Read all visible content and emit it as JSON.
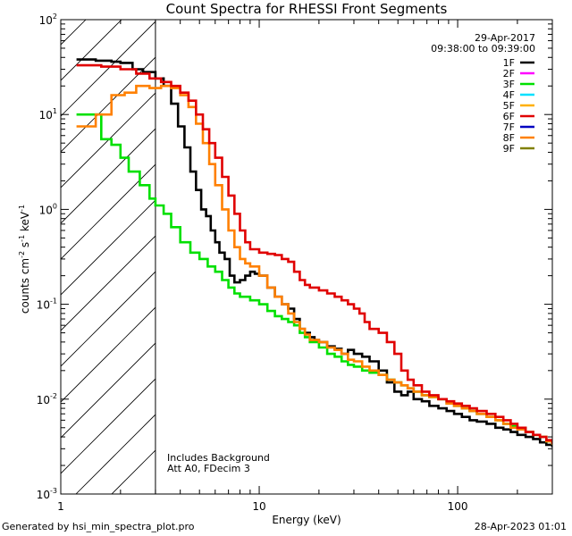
{
  "chart_data": {
    "type": "line",
    "title": "Count Spectra for RHESSI Front Segments",
    "xlabel": "Energy (keV)",
    "ylabel": "counts cm-2 s-1 keV-1",
    "xscale": "log",
    "yscale": "log",
    "xlim": [
      1,
      300
    ],
    "ylim": [
      0.001,
      100
    ],
    "x_tick_labels": [
      {
        "value": 1,
        "label": "1"
      },
      {
        "value": 10,
        "label": "10"
      },
      {
        "value": 100,
        "label": "100"
      }
    ],
    "y_tick_labels": [
      {
        "value": 0.001,
        "mantissa": "10",
        "exp": "-3"
      },
      {
        "value": 0.01,
        "mantissa": "10",
        "exp": "-2"
      },
      {
        "value": 0.1,
        "mantissa": "10",
        "exp": "-1"
      },
      {
        "value": 1,
        "mantissa": "10",
        "exp": "0"
      },
      {
        "value": 10,
        "mantissa": "10",
        "exp": "1"
      },
      {
        "value": 100,
        "mantissa": "10",
        "exp": "2"
      }
    ],
    "header_date": "29-Apr-2017",
    "header_time": "09:38:00 to 09:39:00",
    "legend": [
      {
        "label": "1F",
        "color": "#000000"
      },
      {
        "label": "2F",
        "color": "#ff00ff"
      },
      {
        "label": "3F",
        "color": "#00e000"
      },
      {
        "label": "4F",
        "color": "#00e0ff"
      },
      {
        "label": "5F",
        "color": "#ffb000"
      },
      {
        "label": "6F",
        "color": "#e00000"
      },
      {
        "label": "7F",
        "color": "#0000c0"
      },
      {
        "label": "8F",
        "color": "#ff8000"
      },
      {
        "label": "9F",
        "color": "#808000"
      }
    ],
    "shaded_region": {
      "x_min": 1,
      "x_max": 3,
      "style": "diagonal-hatch"
    },
    "annotations": [
      "Includes Background",
      "Att A0, FDecim 3"
    ],
    "series": [
      {
        "name": "1F",
        "color": "#000000",
        "points": [
          [
            1.2,
            38
          ],
          [
            1.5,
            37
          ],
          [
            1.8,
            36
          ],
          [
            2.0,
            35
          ],
          [
            2.3,
            30
          ],
          [
            2.6,
            28
          ],
          [
            3.0,
            24
          ],
          [
            3.3,
            20
          ],
          [
            3.6,
            13
          ],
          [
            3.9,
            7.5
          ],
          [
            4.2,
            4.5
          ],
          [
            4.5,
            2.5
          ],
          [
            4.8,
            1.6
          ],
          [
            5.1,
            1.0
          ],
          [
            5.4,
            0.85
          ],
          [
            5.7,
            0.6
          ],
          [
            6.0,
            0.45
          ],
          [
            6.3,
            0.35
          ],
          [
            6.7,
            0.3
          ],
          [
            7.1,
            0.2
          ],
          [
            7.5,
            0.17
          ],
          [
            8.0,
            0.18
          ],
          [
            8.5,
            0.2
          ],
          [
            9.0,
            0.22
          ],
          [
            9.5,
            0.21
          ],
          [
            10,
            0.2
          ],
          [
            11,
            0.15
          ],
          [
            12,
            0.12
          ],
          [
            13,
            0.1
          ],
          [
            14,
            0.09
          ],
          [
            15,
            0.07
          ],
          [
            16,
            0.055
          ],
          [
            17,
            0.05
          ],
          [
            18,
            0.045
          ],
          [
            19,
            0.042
          ],
          [
            20,
            0.04
          ],
          [
            22,
            0.036
          ],
          [
            24,
            0.034
          ],
          [
            26,
            0.03
          ],
          [
            28,
            0.033
          ],
          [
            30,
            0.03
          ],
          [
            33,
            0.028
          ],
          [
            36,
            0.025
          ],
          [
            40,
            0.02
          ],
          [
            44,
            0.015
          ],
          [
            48,
            0.012
          ],
          [
            52,
            0.011
          ],
          [
            56,
            0.012
          ],
          [
            60,
            0.01
          ],
          [
            66,
            0.0095
          ],
          [
            72,
            0.0085
          ],
          [
            80,
            0.008
          ],
          [
            88,
            0.0075
          ],
          [
            96,
            0.007
          ],
          [
            105,
            0.0065
          ],
          [
            115,
            0.006
          ],
          [
            125,
            0.0058
          ],
          [
            140,
            0.0055
          ],
          [
            155,
            0.005
          ],
          [
            170,
            0.0048
          ],
          [
            185,
            0.0045
          ],
          [
            200,
            0.0042
          ],
          [
            220,
            0.004
          ],
          [
            240,
            0.0038
          ],
          [
            260,
            0.0035
          ],
          [
            280,
            0.0033
          ],
          [
            300,
            0.0031
          ]
        ]
      },
      {
        "name": "3F",
        "color": "#00e000",
        "points": [
          [
            1.2,
            10
          ],
          [
            1.4,
            10
          ],
          [
            1.6,
            5.5
          ],
          [
            1.8,
            4.8
          ],
          [
            2.0,
            3.5
          ],
          [
            2.2,
            2.5
          ],
          [
            2.5,
            1.8
          ],
          [
            2.8,
            1.3
          ],
          [
            3.0,
            1.1
          ],
          [
            3.3,
            0.9
          ],
          [
            3.6,
            0.65
          ],
          [
            4.0,
            0.45
          ],
          [
            4.5,
            0.35
          ],
          [
            5.0,
            0.3
          ],
          [
            5.5,
            0.25
          ],
          [
            6.0,
            0.22
          ],
          [
            6.5,
            0.18
          ],
          [
            7.0,
            0.15
          ],
          [
            7.5,
            0.13
          ],
          [
            8.0,
            0.12
          ],
          [
            9,
            0.11
          ],
          [
            10,
            0.1
          ],
          [
            11,
            0.085
          ],
          [
            12,
            0.075
          ],
          [
            13,
            0.07
          ],
          [
            14,
            0.065
          ],
          [
            15,
            0.06
          ],
          [
            16,
            0.05
          ],
          [
            17,
            0.045
          ],
          [
            18,
            0.04
          ],
          [
            20,
            0.035
          ],
          [
            22,
            0.03
          ],
          [
            24,
            0.028
          ],
          [
            26,
            0.025
          ],
          [
            28,
            0.023
          ],
          [
            30,
            0.022
          ],
          [
            33,
            0.02
          ],
          [
            36,
            0.019
          ],
          [
            40,
            0.018
          ],
          [
            44,
            0.016
          ],
          [
            48,
            0.015
          ],
          [
            52,
            0.014
          ],
          [
            56,
            0.013
          ],
          [
            60,
            0.012
          ],
          [
            66,
            0.011
          ],
          [
            72,
            0.0105
          ],
          [
            80,
            0.01
          ],
          [
            88,
            0.009
          ],
          [
            96,
            0.0085
          ],
          [
            105,
            0.008
          ],
          [
            115,
            0.0075
          ],
          [
            125,
            0.007
          ],
          [
            140,
            0.0065
          ],
          [
            155,
            0.006
          ],
          [
            170,
            0.0055
          ],
          [
            185,
            0.0052
          ],
          [
            200,
            0.005
          ],
          [
            220,
            0.0045
          ],
          [
            240,
            0.0042
          ],
          [
            260,
            0.004
          ],
          [
            280,
            0.0036
          ],
          [
            300,
            0.0033
          ]
        ]
      },
      {
        "name": "8F",
        "color": "#ff8000",
        "points": [
          [
            1.2,
            7.5
          ],
          [
            1.4,
            7.5
          ],
          [
            1.5,
            10
          ],
          [
            1.8,
            16
          ],
          [
            2.1,
            17
          ],
          [
            2.4,
            20
          ],
          [
            2.8,
            19
          ],
          [
            3.2,
            20
          ],
          [
            3.6,
            19
          ],
          [
            4.0,
            16
          ],
          [
            4.4,
            12
          ],
          [
            4.8,
            8
          ],
          [
            5.2,
            5
          ],
          [
            5.6,
            3.0
          ],
          [
            6.0,
            1.8
          ],
          [
            6.5,
            1.0
          ],
          [
            7.0,
            0.6
          ],
          [
            7.5,
            0.4
          ],
          [
            8.0,
            0.3
          ],
          [
            8.5,
            0.27
          ],
          [
            9,
            0.25
          ],
          [
            10,
            0.2
          ],
          [
            11,
            0.15
          ],
          [
            12,
            0.12
          ],
          [
            13,
            0.1
          ],
          [
            14,
            0.08
          ],
          [
            15,
            0.065
          ],
          [
            16,
            0.055
          ],
          [
            17,
            0.048
          ],
          [
            18,
            0.042
          ],
          [
            20,
            0.04
          ],
          [
            22,
            0.035
          ],
          [
            24,
            0.033
          ],
          [
            26,
            0.03
          ],
          [
            28,
            0.026
          ],
          [
            30,
            0.025
          ],
          [
            33,
            0.022
          ],
          [
            36,
            0.02
          ],
          [
            40,
            0.018
          ],
          [
            44,
            0.016
          ],
          [
            48,
            0.015
          ],
          [
            52,
            0.014
          ],
          [
            56,
            0.013
          ],
          [
            60,
            0.012
          ],
          [
            66,
            0.011
          ],
          [
            72,
            0.0105
          ],
          [
            80,
            0.01
          ],
          [
            88,
            0.009
          ],
          [
            96,
            0.0085
          ],
          [
            105,
            0.008
          ],
          [
            115,
            0.0075
          ],
          [
            125,
            0.007
          ],
          [
            140,
            0.0065
          ],
          [
            155,
            0.006
          ],
          [
            170,
            0.0055
          ],
          [
            185,
            0.005
          ],
          [
            200,
            0.0048
          ],
          [
            220,
            0.0045
          ],
          [
            240,
            0.0042
          ],
          [
            260,
            0.004
          ],
          [
            280,
            0.0036
          ],
          [
            300,
            0.0033
          ]
        ]
      },
      {
        "name": "6F",
        "color": "#e00000",
        "points": [
          [
            1.2,
            33
          ],
          [
            1.6,
            32
          ],
          [
            2.0,
            30
          ],
          [
            2.4,
            27
          ],
          [
            2.8,
            24
          ],
          [
            3.2,
            22
          ],
          [
            3.6,
            20
          ],
          [
            4.0,
            17
          ],
          [
            4.4,
            14
          ],
          [
            4.8,
            10
          ],
          [
            5.2,
            7
          ],
          [
            5.6,
            5
          ],
          [
            6.0,
            3.5
          ],
          [
            6.5,
            2.2
          ],
          [
            7.0,
            1.4
          ],
          [
            7.5,
            0.9
          ],
          [
            8.0,
            0.6
          ],
          [
            8.5,
            0.45
          ],
          [
            9,
            0.38
          ],
          [
            10,
            0.35
          ],
          [
            11,
            0.34
          ],
          [
            12,
            0.33
          ],
          [
            13,
            0.3
          ],
          [
            14,
            0.28
          ],
          [
            15,
            0.22
          ],
          [
            16,
            0.18
          ],
          [
            17,
            0.16
          ],
          [
            18,
            0.15
          ],
          [
            20,
            0.14
          ],
          [
            22,
            0.13
          ],
          [
            24,
            0.12
          ],
          [
            26,
            0.11
          ],
          [
            28,
            0.1
          ],
          [
            30,
            0.09
          ],
          [
            32,
            0.08
          ],
          [
            34,
            0.065
          ],
          [
            36,
            0.055
          ],
          [
            40,
            0.05
          ],
          [
            44,
            0.04
          ],
          [
            48,
            0.03
          ],
          [
            52,
            0.02
          ],
          [
            56,
            0.016
          ],
          [
            60,
            0.014
          ],
          [
            66,
            0.012
          ],
          [
            72,
            0.011
          ],
          [
            80,
            0.01
          ],
          [
            88,
            0.0095
          ],
          [
            96,
            0.009
          ],
          [
            105,
            0.0085
          ],
          [
            115,
            0.008
          ],
          [
            125,
            0.0075
          ],
          [
            140,
            0.007
          ],
          [
            155,
            0.0065
          ],
          [
            170,
            0.006
          ],
          [
            185,
            0.0055
          ],
          [
            200,
            0.005
          ],
          [
            220,
            0.0045
          ],
          [
            240,
            0.0042
          ],
          [
            260,
            0.004
          ],
          [
            280,
            0.0037
          ],
          [
            300,
            0.0034
          ]
        ]
      }
    ]
  },
  "footer": {
    "left": "Generated by hsi_min_spectra_plot.pro",
    "right": "28-Apr-2023 01:01"
  }
}
